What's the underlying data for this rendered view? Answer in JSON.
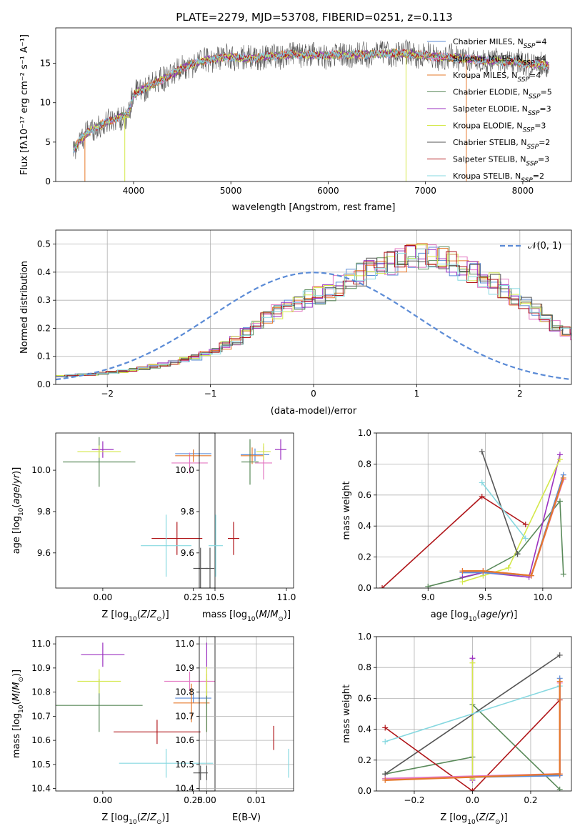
{
  "figure": {
    "title": "PLATE=2279, MJD=53708, FIBERID=0251, z=0.113"
  },
  "colors": {
    "Chabrier MILES": "#5b8bd6",
    "Salpeter MILES": "#e377c2",
    "Kroupa MILES": "#e6782a",
    "Chabrier ELODIE": "#5a8a5a",
    "Salpeter ELODIE": "#9b30c0",
    "Kroupa ELODIE": "#d4e84a",
    "Chabrier STELIB": "#555555",
    "Salpeter STELIB": "#b0161a",
    "Kroupa STELIB": "#86d8e0"
  },
  "chart_data": [
    {
      "id": "spectrum",
      "type": "line",
      "xlabel": "wavelength [Angstrom, rest frame]",
      "ylabel": "Flux [fλ10⁻¹⁷ erg cm⁻² s⁻¹ A⁻¹]",
      "xlim": [
        3200,
        8500
      ],
      "ylim": [
        0,
        19.5
      ],
      "xticks": [
        4000,
        5000,
        6000,
        7000,
        8000
      ],
      "yticks": [
        0,
        5,
        10,
        15
      ],
      "legend_position": "top-right",
      "legend": [
        {
          "name": "Chabrier MILES",
          "nssp": "4"
        },
        {
          "name": "Salpeter MILES",
          "nssp": "4"
        },
        {
          "name": "Kroupa MILES",
          "nssp": "4"
        },
        {
          "name": "Chabrier ELODIE",
          "nssp": "5"
        },
        {
          "name": "Salpeter ELODIE",
          "nssp": "3"
        },
        {
          "name": "Kroupa ELODIE",
          "nssp": "3"
        },
        {
          "name": "Chabrier STELIB",
          "nssp": "2"
        },
        {
          "name": "Salpeter STELIB",
          "nssp": "3"
        },
        {
          "name": "Kroupa STELIB",
          "nssp": "2"
        }
      ],
      "continuum": {
        "x": [
          3380,
          3450,
          3550,
          3650,
          3750,
          3850,
          3950,
          4000,
          4100,
          4200,
          4300,
          4400,
          4500,
          4600,
          4700,
          4800,
          4900,
          5000,
          5100,
          5200,
          5300,
          5400,
          5500,
          5600,
          5700,
          5800,
          5900,
          6000,
          6100,
          6200,
          6300,
          6400,
          6500,
          6600,
          6700,
          6800,
          6900,
          7000,
          7100,
          7200,
          7300,
          7400,
          7500,
          7600,
          7700,
          7800,
          7900,
          8000,
          8100,
          8270
        ],
        "y": [
          4.0,
          5.3,
          6.4,
          7.1,
          7.6,
          8.1,
          8.6,
          11.0,
          11.8,
          12.3,
          13.0,
          13.6,
          14.4,
          14.9,
          15.2,
          15.6,
          15.7,
          15.8,
          15.7,
          15.6,
          15.8,
          15.9,
          16.0,
          16.1,
          16.1,
          16.1,
          16.0,
          16.0,
          16.1,
          16.1,
          16.1,
          16.1,
          16.2,
          16.2,
          16.3,
          16.2,
          16.1,
          16.0,
          15.8,
          15.8,
          15.7,
          15.6,
          15.5,
          15.4,
          15.3,
          15.2,
          15.2,
          15.0,
          14.9,
          14.7
        ]
      },
      "absorption_lines": [
        {
          "x": 3500,
          "depth_to": 0.0,
          "series": "Kroupa MILES"
        },
        {
          "x": 3910,
          "depth_to": 0.0,
          "series": "Kroupa ELODIE"
        },
        {
          "x": 6800,
          "depth_to": 0.0,
          "series": "Kroupa ELODIE"
        },
        {
          "x": 7420,
          "depth_to": 0.0,
          "series": "Kroupa MILES"
        }
      ]
    },
    {
      "id": "residuals",
      "type": "line",
      "xlabel": "(data-model)/error",
      "ylabel": "Normed distribution",
      "xlim": [
        -2.5,
        2.5
      ],
      "ylim": [
        0,
        0.55
      ],
      "xticks": [
        -2,
        -1,
        0,
        1,
        2
      ],
      "xticklabels": [
        "−2",
        "−1",
        "0",
        "1",
        "2"
      ],
      "yticks": [
        0.0,
        0.1,
        0.2,
        0.3,
        0.4,
        0.5
      ],
      "grid": true,
      "legend_position": "top-right",
      "gaussian_label": "𝒩(0, 1)",
      "hist_bins": {
        "start": -2.5,
        "width": 0.1
      },
      "hist_base": [
        0.029,
        0.033,
        0.035,
        0.036,
        0.04,
        0.043,
        0.047,
        0.052,
        0.058,
        0.065,
        0.071,
        0.079,
        0.087,
        0.097,
        0.107,
        0.12,
        0.139,
        0.158,
        0.185,
        0.213,
        0.238,
        0.259,
        0.277,
        0.292,
        0.306,
        0.315,
        0.33,
        0.35,
        0.372,
        0.392,
        0.41,
        0.42,
        0.43,
        0.44,
        0.45,
        0.46,
        0.455,
        0.442,
        0.43,
        0.415,
        0.398,
        0.378,
        0.36,
        0.34,
        0.315,
        0.29,
        0.26,
        0.235,
        0.21,
        0.188,
        0.168,
        0.15,
        0.132,
        0.115,
        0.1,
        0.088,
        0.077,
        0.066,
        0.058,
        0.051,
        0.045,
        0.04,
        0.036,
        0.033,
        0.031,
        0.028,
        0.026,
        0.024,
        0.022,
        0.02
      ],
      "gaussian": {
        "mean": 0,
        "sigma": 1
      }
    },
    {
      "id": "age-vs-Z",
      "type": "scatter",
      "xlabel": "Z [log₁₀(Z/Z⊙)]",
      "ylabel": "age  [log₁₀(age/yr)]",
      "xlim": [
        -0.13,
        0.31
      ],
      "ylim": [
        9.43,
        10.18
      ],
      "xticks": [
        0.0,
        0.25
      ],
      "xticklabels": [
        "0.00",
        "0.25"
      ],
      "yticks": [
        9.6,
        9.8,
        10.0
      ],
      "yticklabels": [
        "9.6",
        "9.8",
        "10.0"
      ],
      "points": [
        {
          "series": "Chabrier MILES",
          "x": 0.25,
          "y": 10.08,
          "xerr": 0.05,
          "yerr": 0.02
        },
        {
          "series": "Salpeter MILES",
          "x": 0.24,
          "y": 10.035,
          "xerr": 0.05,
          "yerr": 0.05
        },
        {
          "series": "Kroupa MILES",
          "x": 0.25,
          "y": 10.07,
          "xerr": 0.05,
          "yerr": 0.03
        },
        {
          "series": "Chabrier ELODIE",
          "x": -0.01,
          "y": 10.04,
          "xerr": 0.1,
          "yerr": 0.12
        },
        {
          "series": "Salpeter ELODIE",
          "x": 0.0,
          "y": 10.1,
          "xerr": 0.03,
          "yerr": 0.04
        },
        {
          "series": "Kroupa ELODIE",
          "x": -0.01,
          "y": 10.09,
          "xerr": 0.06,
          "yerr": 0.03
        },
        {
          "series": "Chabrier STELIB",
          "x": 0.27,
          "y": 9.525,
          "xerr": 0.02,
          "yerr": 0.1
        },
        {
          "series": "Salpeter STELIB",
          "x": 0.205,
          "y": 9.67,
          "xerr": 0.07,
          "yerr": 0.08
        },
        {
          "series": "Kroupa STELIB",
          "x": 0.175,
          "y": 9.635,
          "xerr": 0.07,
          "yerr": 0.15
        }
      ]
    },
    {
      "id": "age-vs-mass",
      "type": "scatter",
      "xlabel": "mass [log₁₀(M/M⊙)]",
      "ylabel": "",
      "xlim": [
        10.39,
        11.05
      ],
      "ylim": [
        9.43,
        10.18
      ],
      "xticks": [
        10.5,
        11.0
      ],
      "xticklabels": [
        "10.5",
        "11.0"
      ],
      "yticks": [
        9.6,
        9.8,
        10.0
      ],
      "yticklabels": [
        "9.6",
        "9.8",
        "10.0"
      ],
      "points": [
        {
          "series": "Chabrier MILES",
          "x": 10.78,
          "y": 10.075,
          "xerr": 0.1,
          "yerr": 0.03
        },
        {
          "series": "Salpeter MILES",
          "x": 10.84,
          "y": 10.035,
          "xerr": 0.06,
          "yerr": 0.08
        },
        {
          "series": "Kroupa MILES",
          "x": 10.76,
          "y": 10.07,
          "xerr": 0.08,
          "yerr": 0.04
        },
        {
          "series": "Chabrier ELODIE",
          "x": 10.745,
          "y": 10.04,
          "xerr": 0.06,
          "yerr": 0.11
        },
        {
          "series": "Salpeter ELODIE",
          "x": 10.96,
          "y": 10.1,
          "xerr": 0.04,
          "yerr": 0.05
        },
        {
          "series": "Kroupa ELODIE",
          "x": 10.84,
          "y": 10.09,
          "xerr": 0.05,
          "yerr": 0.04
        },
        {
          "series": "Chabrier STELIB",
          "x": 10.465,
          "y": 9.525,
          "xerr": 0.03,
          "yerr": 0.1
        },
        {
          "series": "Salpeter STELIB",
          "x": 10.63,
          "y": 9.67,
          "xerr": 0.04,
          "yerr": 0.08
        },
        {
          "series": "Kroupa STELIB",
          "x": 10.505,
          "y": 9.635,
          "xerr": 0.05,
          "yerr": 0.15
        }
      ]
    },
    {
      "id": "massweight-vs-age",
      "type": "line",
      "xlabel": "age  [log₁₀(age/yr)]",
      "ylabel": "mass weight",
      "xlim": [
        8.55,
        10.25
      ],
      "ylim": [
        0,
        1.0
      ],
      "xticks": [
        9.0,
        9.5,
        10.0
      ],
      "xticklabels": [
        "9.0",
        "9.5",
        "10.0"
      ],
      "yticks": [
        0.0,
        0.2,
        0.4,
        0.6,
        0.8,
        1.0
      ],
      "grid": true,
      "series": [
        {
          "name": "Chabrier ELODIE",
          "x": [
            9.0,
            9.48,
            9.78,
            10.15,
            10.18
          ],
          "y": [
            0.01,
            0.1,
            0.22,
            0.56,
            0.09
          ]
        },
        {
          "name": "Salpeter ELODIE",
          "x": [
            9.3,
            9.48,
            9.88,
            10.15
          ],
          "y": [
            0.07,
            0.1,
            0.07,
            0.86
          ]
        },
        {
          "name": "Kroupa ELODIE",
          "x": [
            9.3,
            9.48,
            9.7,
            10.15
          ],
          "y": [
            0.04,
            0.08,
            0.13,
            0.83
          ]
        },
        {
          "name": "Chabrier STELIB",
          "x": [
            9.47,
            9.78
          ],
          "y": [
            0.88,
            0.22
          ]
        },
        {
          "name": "Salpeter STELIB",
          "x": [
            8.6,
            9.47,
            9.85
          ],
          "y": [
            0.0,
            0.59,
            0.41
          ]
        },
        {
          "name": "Kroupa STELIB",
          "x": [
            9.47,
            9.85
          ],
          "y": [
            0.68,
            0.32
          ]
        },
        {
          "name": "Chabrier MILES",
          "x": [
            9.3,
            9.48,
            9.9,
            10.18
          ],
          "y": [
            0.1,
            0.1,
            0.08,
            0.73
          ]
        },
        {
          "name": "Salpeter MILES",
          "x": [
            9.3,
            9.48,
            9.9,
            10.18
          ],
          "y": [
            0.11,
            0.11,
            0.08,
            0.7
          ]
        },
        {
          "name": "Kroupa MILES",
          "x": [
            9.3,
            9.48,
            9.9,
            10.18
          ],
          "y": [
            0.11,
            0.11,
            0.08,
            0.71
          ]
        }
      ]
    },
    {
      "id": "mass-vs-Z",
      "type": "scatter",
      "xlabel": "Z [log₁₀(Z/Z⊙)]",
      "ylabel": "mass [log₁₀(M/M⊙)]",
      "xlim": [
        -0.13,
        0.31
      ],
      "ylim": [
        10.39,
        11.03
      ],
      "xticks": [
        0.0,
        0.25
      ],
      "xticklabels": [
        "0.00",
        "0.25"
      ],
      "yticks": [
        10.4,
        10.5,
        10.6,
        10.7,
        10.8,
        10.9,
        11.0
      ],
      "yticklabels": [
        "10.4",
        "10.5",
        "10.6",
        "10.7",
        "10.8",
        "10.9",
        "11.0"
      ],
      "points": [
        {
          "series": "Chabrier MILES",
          "x": 0.25,
          "y": 10.775,
          "xerr": 0.05,
          "yerr": 0.02
        },
        {
          "series": "Salpeter MILES",
          "x": 0.24,
          "y": 10.845,
          "xerr": 0.07,
          "yerr": 0.04
        },
        {
          "series": "Kroupa MILES",
          "x": 0.245,
          "y": 10.755,
          "xerr": 0.05,
          "yerr": 0.08
        },
        {
          "series": "Chabrier ELODIE",
          "x": -0.01,
          "y": 10.745,
          "xerr": 0.12,
          "yerr": 0.11
        },
        {
          "series": "Salpeter ELODIE",
          "x": 0.0,
          "y": 10.955,
          "xerr": 0.06,
          "yerr": 0.05
        },
        {
          "series": "Kroupa ELODIE",
          "x": -0.01,
          "y": 10.845,
          "xerr": 0.06,
          "yerr": 0.05
        },
        {
          "series": "Chabrier STELIB",
          "x": 0.27,
          "y": 10.465,
          "xerr": 0.02,
          "yerr": 0.03
        },
        {
          "series": "Salpeter STELIB",
          "x": 0.15,
          "y": 10.635,
          "xerr": 0.12,
          "yerr": 0.05
        },
        {
          "series": "Kroupa STELIB",
          "x": 0.175,
          "y": 10.505,
          "xerr": 0.13,
          "yerr": 0.06
        }
      ]
    },
    {
      "id": "mass-vs-EBV",
      "type": "scatter",
      "xlabel": "E(B-V)",
      "ylabel": "",
      "xlim": [
        -0.0015,
        0.0175
      ],
      "ylim": [
        10.39,
        11.03
      ],
      "xticks": [
        0.0,
        0.01
      ],
      "xticklabels": [
        "0.00",
        "0.01"
      ],
      "yticks": [
        10.4,
        10.5,
        10.6,
        10.7,
        10.8,
        10.9,
        11.0
      ],
      "yticklabels": [
        "10.4",
        "10.5",
        "10.6",
        "10.7",
        "10.8",
        "10.9",
        "11.0"
      ],
      "grid": true,
      "points": [
        {
          "series": "Chabrier MILES",
          "x": 0.0,
          "y": 10.775,
          "xerr": 0,
          "yerr": 0.03
        },
        {
          "series": "Salpeter MILES",
          "x": 0.0,
          "y": 10.845,
          "xerr": 0,
          "yerr": 0.05
        },
        {
          "series": "Kroupa MILES",
          "x": 0.0,
          "y": 10.755,
          "xerr": 0,
          "yerr": 0.12
        },
        {
          "series": "Chabrier ELODIE",
          "x": 0.0,
          "y": 10.745,
          "xerr": 0,
          "yerr": 0.11
        },
        {
          "series": "Salpeter ELODIE",
          "x": 0.0,
          "y": 10.955,
          "xerr": 0,
          "yerr": 0.05
        },
        {
          "series": "Kroupa ELODIE",
          "x": 0.0,
          "y": 10.845,
          "xerr": 0,
          "yerr": 0.06
        },
        {
          "series": "Chabrier STELIB",
          "x": 0.0,
          "y": 10.465,
          "xerr": 0,
          "yerr": 0.03
        },
        {
          "series": "Salpeter STELIB",
          "x": 0.0135,
          "y": 10.61,
          "xerr": 0,
          "yerr": 0.05
        },
        {
          "series": "Kroupa STELIB",
          "x": 0.0165,
          "y": 10.505,
          "xerr": 0,
          "yerr": 0.06
        }
      ]
    },
    {
      "id": "massweight-vs-Z",
      "type": "line",
      "xlabel": "Z [log₁₀(Z/Z⊙)]",
      "ylabel": "mass weight",
      "xlim": [
        -0.33,
        0.34
      ],
      "ylim": [
        0,
        1.0
      ],
      "xticks": [
        -0.2,
        0.0,
        0.2
      ],
      "xticklabels": [
        "−0.2",
        "0.0",
        "0.2"
      ],
      "yticks": [
        0.0,
        0.2,
        0.4,
        0.6,
        0.8,
        1.0
      ],
      "grid": true,
      "series": [
        {
          "name": "Chabrier ELODIE",
          "x": [
            -0.3,
            0.0,
            0.0,
            0.3
          ],
          "y": [
            0.11,
            0.22,
            0.56,
            0.01
          ]
        },
        {
          "name": "Salpeter ELODIE",
          "x": [
            0.0,
            0.0
          ],
          "y": [
            0.07,
            0.86
          ]
        },
        {
          "name": "Kroupa ELODIE",
          "x": [
            0.0,
            0.0
          ],
          "y": [
            0.08,
            0.83
          ]
        },
        {
          "name": "Chabrier STELIB",
          "x": [
            -0.3,
            0.3
          ],
          "y": [
            0.11,
            0.88
          ]
        },
        {
          "name": "Salpeter STELIB",
          "x": [
            -0.3,
            0.0,
            0.3
          ],
          "y": [
            0.41,
            0.0,
            0.59
          ]
        },
        {
          "name": "Kroupa STELIB",
          "x": [
            -0.3,
            0.3
          ],
          "y": [
            0.32,
            0.68
          ]
        },
        {
          "name": "Chabrier MILES",
          "x": [
            -0.3,
            0.3,
            0.3
          ],
          "y": [
            0.08,
            0.1,
            0.73
          ]
        },
        {
          "name": "Salpeter MILES",
          "x": [
            -0.3,
            0.3,
            0.3
          ],
          "y": [
            0.08,
            0.11,
            0.7
          ]
        },
        {
          "name": "Kroupa MILES",
          "x": [
            -0.3,
            0.3,
            0.3
          ],
          "y": [
            0.07,
            0.11,
            0.71
          ]
        }
      ]
    }
  ]
}
